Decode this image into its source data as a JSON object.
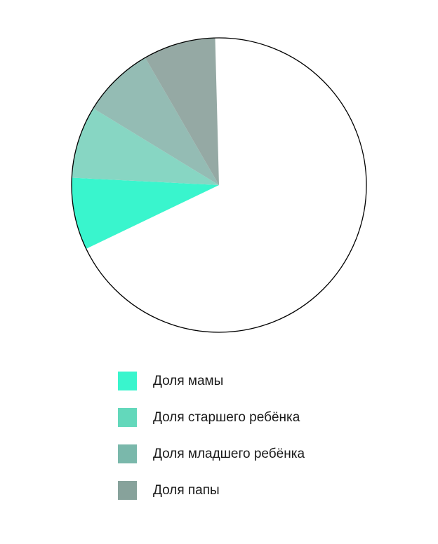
{
  "chart_data": {
    "type": "pie",
    "title": "",
    "slices": [
      {
        "label": "",
        "value": 0.683,
        "color": "#ffffff"
      },
      {
        "label": "Доля мамы",
        "value": 0.0793,
        "color": "#39f5cd"
      },
      {
        "label": "Доля старшего ребёнка",
        "value": 0.0793,
        "color": "#87d6c3"
      },
      {
        "label": "Доля младшего ребёнка",
        "value": 0.0793,
        "color": "#94bcb4"
      },
      {
        "label": "Доля папы",
        "value": 0.0793,
        "color": "#95a9a4"
      }
    ],
    "legend_position": "bottom"
  },
  "legend": {
    "items": [
      {
        "label": "Доля мамы",
        "color": "#39f5cd"
      },
      {
        "label": "Доля старшего ребёнка",
        "color": "#63d8bb"
      },
      {
        "label": "Доля младшего ребёнка",
        "color": "#7ab8ab"
      },
      {
        "label": "Доля папы",
        "color": "#87a29b"
      }
    ]
  }
}
